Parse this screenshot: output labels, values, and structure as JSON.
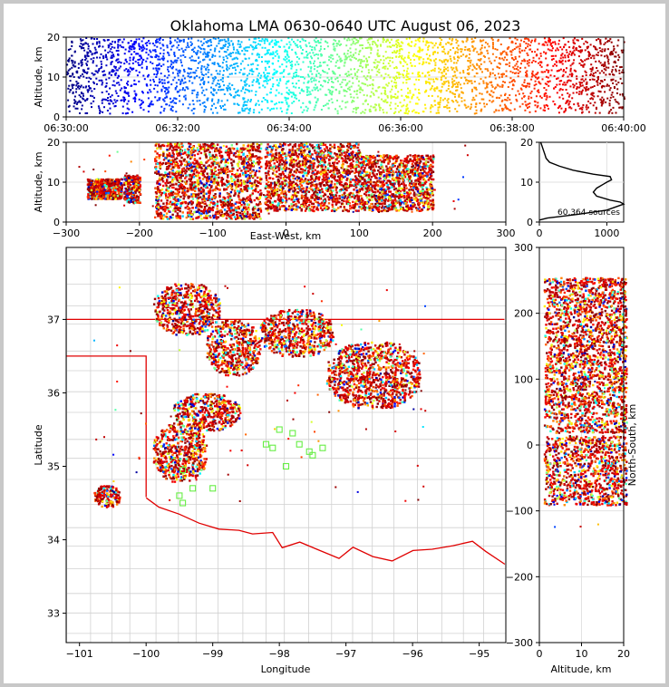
{
  "title": "Oklahoma LMA 0630-0640 UTC August 06, 2023",
  "chart_data": [
    {
      "type": "scatter",
      "panel": "altitude-time",
      "ylabel": "Altitude, km",
      "xlim": [
        "06:30:00",
        "06:40:00"
      ],
      "ylim": [
        0,
        20
      ],
      "xticks": [
        "06:30:00",
        "06:32:00",
        "06:34:00",
        "06:36:00",
        "06:38:00",
        "06:40:00"
      ],
      "yticks": [
        "0",
        "10",
        "20"
      ],
      "color_by": "time",
      "colormap": "jet"
    },
    {
      "type": "scatter",
      "panel": "altitude-eastwest",
      "xlabel": "East-West, km",
      "ylabel": "Altitude, km",
      "xlim": [
        -300,
        300
      ],
      "ylim": [
        0,
        20
      ],
      "xticks": [
        "−300",
        "−200",
        "−100",
        "0",
        "100",
        "200",
        "300"
      ],
      "yticks": [
        "0",
        "10",
        "20"
      ],
      "clusters": [
        {
          "x0": -272,
          "x1": -225,
          "y0": 6,
          "y1": 11
        },
        {
          "x0": -222,
          "x1": -200,
          "y0": 5,
          "y1": 12
        },
        {
          "x0": -180,
          "x1": -35,
          "y0": 1,
          "y1": 20
        },
        {
          "x0": -30,
          "x1": 0,
          "y0": 3,
          "y1": 20
        },
        {
          "x0": 2,
          "x1": 100,
          "y0": 3,
          "y1": 20
        },
        {
          "x0": 100,
          "x1": 200,
          "y0": 3,
          "y1": 17
        }
      ]
    },
    {
      "type": "line",
      "panel": "altitude-histogram",
      "xlim": [
        0,
        1250
      ],
      "ylim": [
        0,
        20
      ],
      "xticks": [
        "0",
        "1000"
      ],
      "yticks": [
        "0",
        "10",
        "20"
      ],
      "annotation": "60,364 sources",
      "profile": [
        [
          0,
          0.5
        ],
        [
          120,
          1
        ],
        [
          600,
          2
        ],
        [
          1000,
          3
        ],
        [
          1250,
          4.5
        ],
        [
          1200,
          5
        ],
        [
          1050,
          5.5
        ],
        [
          850,
          6.5
        ],
        [
          800,
          7.5
        ],
        [
          850,
          8.5
        ],
        [
          950,
          9.5
        ],
        [
          1000,
          10
        ],
        [
          1070,
          10.6
        ],
        [
          1050,
          11.4
        ],
        [
          800,
          12
        ],
        [
          500,
          13
        ],
        [
          300,
          14
        ],
        [
          150,
          15
        ],
        [
          100,
          16
        ],
        [
          80,
          17
        ],
        [
          60,
          18
        ],
        [
          40,
          19
        ],
        [
          20,
          20
        ]
      ]
    },
    {
      "type": "scatter",
      "panel": "plan-map",
      "xlabel": "Longitude",
      "ylabel": "Latitude",
      "xlim": [
        -101.2,
        -94.6
      ],
      "ylim": [
        32.6,
        37.98
      ],
      "xticks": [
        "−101",
        "−100",
        "−99",
        "−98",
        "−97",
        "−96",
        "−95"
      ],
      "yticks": [
        "33",
        "34",
        "35",
        "36",
        "37"
      ],
      "clusters": [
        {
          "lon0": -99.9,
          "lon1": -98.9,
          "lat0": 36.8,
          "lat1": 37.5
        },
        {
          "lon0": -99.1,
          "lon1": -98.3,
          "lat0": 36.25,
          "lat1": 37.0
        },
        {
          "lon0": -98.3,
          "lon1": -97.2,
          "lat0": 36.5,
          "lat1": 37.15
        },
        {
          "lon0": -97.3,
          "lon1": -95.9,
          "lat0": 35.8,
          "lat1": 36.7
        },
        {
          "lon0": -99.6,
          "lon1": -98.6,
          "lat0": 35.5,
          "lat1": 36.0
        },
        {
          "lon0": -99.9,
          "lon1": -99.1,
          "lat0": 34.8,
          "lat1": 35.6
        },
        {
          "lon0": -100.8,
          "lon1": -100.4,
          "lat0": 34.45,
          "lat1": 34.75
        }
      ],
      "stations": [
        [
          -99.45,
          34.95
        ],
        [
          -99.3,
          34.7
        ],
        [
          -99.5,
          34.6
        ],
        [
          -99.0,
          34.7
        ],
        [
          -99.45,
          34.5
        ],
        [
          -98.0,
          35.5
        ],
        [
          -97.8,
          35.45
        ],
        [
          -98.1,
          35.25
        ],
        [
          -97.9,
          35.0
        ],
        [
          -97.5,
          35.15
        ],
        [
          -97.35,
          35.25
        ],
        [
          -97.7,
          35.3
        ],
        [
          -97.55,
          35.2
        ],
        [
          -98.2,
          35.3
        ]
      ]
    },
    {
      "type": "scatter",
      "panel": "northsouth-altitude",
      "xlabel": "Altitude, km",
      "ylabel": "North-South, km",
      "xlim": [
        0,
        20
      ],
      "ylim": [
        -300,
        300
      ],
      "xticks": [
        "0",
        "10",
        "20"
      ],
      "yticks": [
        "−300",
        "−200",
        "−100",
        "0",
        "100",
        "200",
        "300"
      ],
      "clusters": [
        {
          "y0": 80,
          "y1": 255
        },
        {
          "y0": 20,
          "y1": 80
        },
        {
          "y0": -25,
          "y1": 15
        },
        {
          "y0": -90,
          "y1": -25
        }
      ]
    }
  ]
}
